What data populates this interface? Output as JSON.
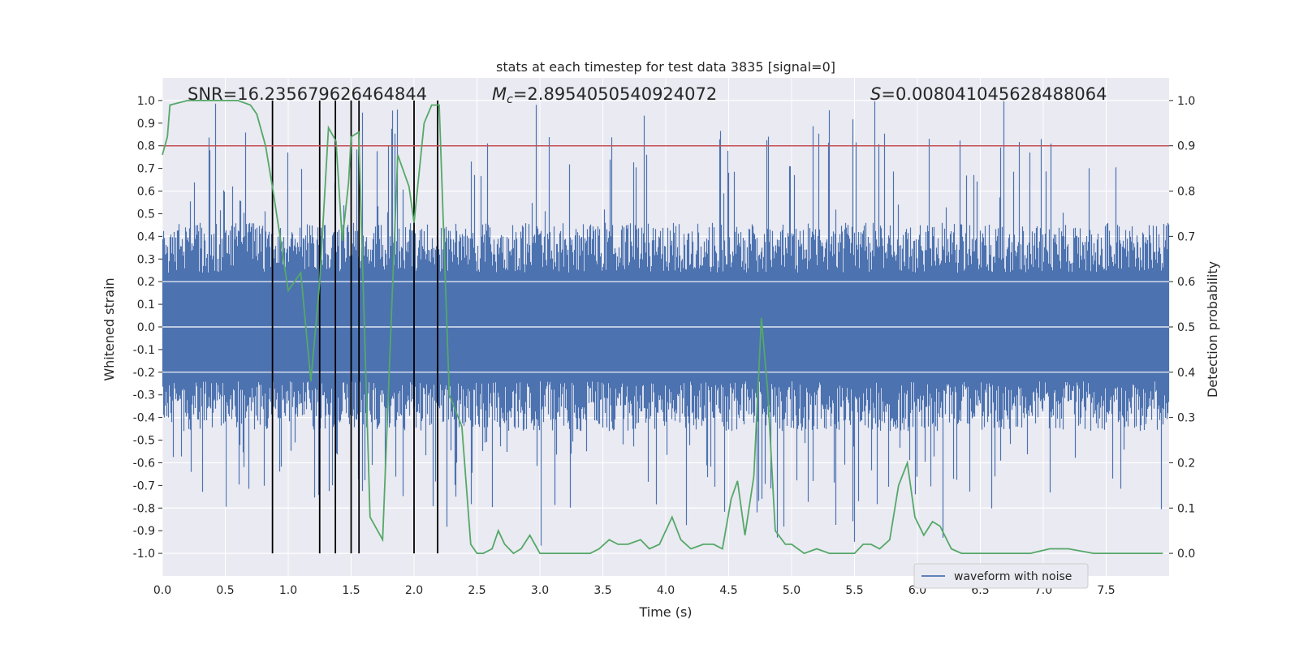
{
  "chart_data": {
    "type": "line",
    "title": "stats at each timestep for test data 3835 [signal=0]",
    "xlabel": "Time (s)",
    "ylabel_left": "Whitened strain",
    "ylabel_right": "Detection probability",
    "xlim": [
      0.0,
      8.0
    ],
    "ylim_left": [
      -1.1,
      1.1
    ],
    "ylim_right": [
      -0.05,
      1.05
    ],
    "x_ticks": [
      "0.0",
      "0.5",
      "1.0",
      "1.5",
      "2.0",
      "2.5",
      "3.0",
      "3.5",
      "4.0",
      "4.5",
      "5.0",
      "5.5",
      "6.0",
      "6.5",
      "7.0",
      "7.5"
    ],
    "y_ticks_left": [
      "1.0",
      "0.9",
      "0.8",
      "0.7",
      "0.6",
      "0.5",
      "0.4",
      "0.3",
      "0.2",
      "0.1",
      "0.0",
      "-0.1",
      "-0.2",
      "-0.3",
      "-0.4",
      "-0.5",
      "-0.6",
      "-0.7",
      "-0.8",
      "-0.9",
      "-1.0"
    ],
    "y_ticks_right": [
      "1.0",
      "0.9",
      "0.8",
      "0.7",
      "0.6",
      "0.5",
      "0.4",
      "0.3",
      "0.2",
      "0.1",
      "0.0"
    ],
    "annotations": {
      "snr": "SNR=16.235679626464844",
      "mc_symbol": "M",
      "mc_subscript": "c",
      "mc_value": "=2.8954050540924072",
      "s_symbol": "S",
      "s_value": "=0.008041045628488064"
    },
    "threshold": {
      "value": 0.9,
      "axis": "right",
      "color": "#c44e52"
    },
    "vertical_markers": [
      0.875,
      1.25,
      1.375,
      1.5,
      1.5625,
      2.0,
      2.1875
    ],
    "legend": {
      "label": "waveform with noise",
      "position": "lower-right"
    },
    "series": [
      {
        "name": "waveform with noise",
        "axis": "left",
        "color": "#4c72b0",
        "description": "dense noise strain trace, approx band +/-0.4 with spikes to ~+/-1.0"
      },
      {
        "name": "detection probability",
        "axis": "right",
        "color": "#55a868",
        "x": [
          0.0,
          0.04,
          0.06,
          0.2,
          0.4,
          0.6,
          0.7,
          0.75,
          0.82,
          0.88,
          1.0,
          1.1,
          1.18,
          1.25,
          1.32,
          1.38,
          1.43,
          1.48,
          1.5,
          1.56,
          1.65,
          1.75,
          1.87,
          1.96,
          2.0,
          2.08,
          2.14,
          2.2,
          2.28,
          2.38,
          2.45,
          2.5,
          2.55,
          2.62,
          2.67,
          2.72,
          2.79,
          2.85,
          2.92,
          3.0,
          3.1,
          3.2,
          3.3,
          3.4,
          3.47,
          3.55,
          3.62,
          3.7,
          3.8,
          3.87,
          3.95,
          4.05,
          4.12,
          4.2,
          4.3,
          4.38,
          4.45,
          4.52,
          4.57,
          4.63,
          4.7,
          4.76,
          4.81,
          4.87,
          4.95,
          5.0,
          5.1,
          5.2,
          5.3,
          5.4,
          5.5,
          5.57,
          5.63,
          5.7,
          5.78,
          5.85,
          5.92,
          5.98,
          6.05,
          6.12,
          6.18,
          6.27,
          6.35,
          6.6,
          6.9,
          7.05,
          7.1,
          7.2,
          7.4,
          7.7,
          7.95
        ],
        "y": [
          0.88,
          0.92,
          0.99,
          1.0,
          1.0,
          1.0,
          0.99,
          0.97,
          0.9,
          0.8,
          0.58,
          0.62,
          0.38,
          0.6,
          0.94,
          0.91,
          0.69,
          0.82,
          0.92,
          0.93,
          0.08,
          0.03,
          0.88,
          0.81,
          0.73,
          0.95,
          0.99,
          0.99,
          0.35,
          0.28,
          0.02,
          0.0,
          0.0,
          0.01,
          0.05,
          0.02,
          0.0,
          0.01,
          0.04,
          0.0,
          0.0,
          0.0,
          0.0,
          0.0,
          0.01,
          0.03,
          0.02,
          0.02,
          0.03,
          0.01,
          0.02,
          0.08,
          0.03,
          0.01,
          0.02,
          0.02,
          0.01,
          0.12,
          0.16,
          0.04,
          0.17,
          0.52,
          0.36,
          0.05,
          0.02,
          0.02,
          0.0,
          0.01,
          0.0,
          0.0,
          0.0,
          0.02,
          0.02,
          0.01,
          0.03,
          0.15,
          0.2,
          0.08,
          0.04,
          0.07,
          0.06,
          0.01,
          0.0,
          0.0,
          0.0,
          0.01,
          0.01,
          0.01,
          0.0,
          0.0,
          0.0
        ]
      }
    ]
  }
}
